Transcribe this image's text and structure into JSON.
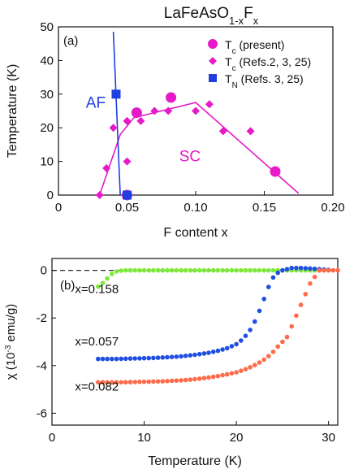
{
  "figure_title": {
    "base": "LaFeAsO",
    "sub": "1-x",
    "mid": "F",
    "sub2": "x"
  },
  "chart_data": [
    {
      "type": "scatter",
      "panel_label": "(a)",
      "xlabel": "F content x",
      "ylabel": "Temperature (K)",
      "xlim": [
        0,
        0.2
      ],
      "ylim": [
        0,
        50
      ],
      "xticks": [
        0,
        0.05,
        0.1,
        0.15,
        0.2
      ],
      "xtick_labels": [
        "0",
        "0.05",
        "0.10",
        "0.15",
        "0.20"
      ],
      "yticks": [
        0,
        10,
        20,
        30,
        40,
        50
      ],
      "ytick_labels": [
        "0",
        "10",
        "20",
        "30",
        "40",
        "50"
      ],
      "legend_position": "top-right",
      "annotations": [
        {
          "text": "AF",
          "x": 0.02,
          "y": 26,
          "color": "#1f3fe0"
        },
        {
          "text": "SC",
          "x": 0.088,
          "y": 10,
          "color": "#e61ac8"
        }
      ],
      "series": [
        {
          "legend": {
            "base": "T",
            "sub": "c",
            "rest": " (present)"
          },
          "marker": "circle",
          "color": "#e61ac8",
          "points": [
            [
              0.05,
              0
            ],
            [
              0.057,
              24.5
            ],
            [
              0.082,
              29
            ],
            [
              0.158,
              7
            ]
          ]
        },
        {
          "legend": {
            "base": "T",
            "sub": "c",
            "rest": " (Refs.2, 3, 25)"
          },
          "marker": "diamond",
          "color": "#e61ac8",
          "points": [
            [
              0.03,
              0
            ],
            [
              0.035,
              8
            ],
            [
              0.04,
              20
            ],
            [
              0.05,
              10
            ],
            [
              0.05,
              22
            ],
            [
              0.06,
              22
            ],
            [
              0.07,
              25
            ],
            [
              0.08,
              25
            ],
            [
              0.1,
              25
            ],
            [
              0.11,
              27
            ],
            [
              0.12,
              19
            ],
            [
              0.14,
              19
            ]
          ]
        },
        {
          "legend": {
            "base": "T",
            "sub": "N",
            "rest": " (Refs. 3, 25)"
          },
          "marker": "square",
          "color": "#1f3fe0",
          "points": [
            [
              0.042,
              30
            ],
            [
              0.05,
              0
            ]
          ]
        }
      ],
      "lines": [
        {
          "name": "SC boundary",
          "color": "#e61ac8",
          "points": [
            [
              0.03,
              0
            ],
            [
              0.045,
              18
            ],
            [
              0.055,
              23
            ],
            [
              0.1,
              27.5
            ],
            [
              0.175,
              0.5
            ]
          ]
        },
        {
          "name": "AF boundary",
          "color": "#1f3fe0",
          "points": [
            [
              0.04,
              48.5
            ],
            [
              0.045,
              0
            ]
          ]
        }
      ]
    },
    {
      "type": "scatter",
      "panel_label": "(b)",
      "xlabel": "Temperature (K)",
      "ylabel_parts": {
        "pre": "χ (10",
        "sup": "-3",
        "post": " emu/g)"
      },
      "xlim": [
        0,
        31
      ],
      "ylim": [
        -6.5,
        0.5
      ],
      "xticks": [
        0,
        10,
        20,
        30
      ],
      "xtick_labels": [
        "0",
        "10",
        "20",
        "30"
      ],
      "yticks": [
        0,
        -2,
        -4,
        -6
      ],
      "ytick_labels": [
        "0",
        "-2",
        "-4",
        "-6"
      ],
      "zero_line": "dashed",
      "series": [
        {
          "name": "x=0.158",
          "color": "#7ee83a",
          "label_pos": [
            2.5,
            -0.95
          ],
          "curve": {
            "T": [
              5,
              5.3,
              5.6,
              5.9,
              6.2,
              6.5,
              6.8,
              7.2,
              8,
              9,
              10,
              11,
              12,
              13,
              14,
              15,
              16,
              17,
              18,
              19,
              20,
              21,
              22,
              23,
              24,
              25,
              26,
              27,
              28,
              29,
              30
            ],
            "chi": [
              -0.68,
              -0.6,
              -0.5,
              -0.38,
              -0.26,
              -0.15,
              -0.07,
              -0.02,
              0,
              0,
              0,
              0,
              0,
              0,
              0,
              0,
              0,
              0,
              0,
              0,
              0,
              0,
              0,
              0,
              0,
              0,
              0,
              0,
              0,
              0,
              0
            ]
          }
        },
        {
          "name": "x=0.057",
          "color": "#1f4fe0",
          "label_pos": [
            2.5,
            -3.15
          ],
          "curve": {
            "T": [
              5,
              6,
              7,
              8,
              9,
              10,
              11,
              12,
              13,
              14,
              15,
              16,
              17,
              18,
              19,
              20,
              20.5,
              21,
              21.5,
              22,
              22.5,
              23,
              23.5,
              24,
              24.5,
              25,
              25.5,
              26,
              27,
              28,
              29,
              30
            ],
            "chi": [
              -3.72,
              -3.72,
              -3.72,
              -3.71,
              -3.7,
              -3.69,
              -3.68,
              -3.66,
              -3.64,
              -3.61,
              -3.57,
              -3.52,
              -3.46,
              -3.38,
              -3.27,
              -3.1,
              -2.95,
              -2.75,
              -2.5,
              -2.15,
              -1.7,
              -1.2,
              -0.7,
              -0.3,
              -0.1,
              0,
              0.05,
              0.1,
              0.1,
              0.08,
              0.05,
              0.02
            ]
          }
        },
        {
          "name": "x=0.082",
          "color": "#ff6b4a",
          "label_pos": [
            2.5,
            -5.05
          ],
          "curve": {
            "T": [
              5,
              6,
              7,
              8,
              9,
              10,
              11,
              12,
              13,
              14,
              15,
              16,
              17,
              18,
              19,
              20,
              20.5,
              21,
              21.5,
              22,
              22.5,
              23,
              23.5,
              24,
              24.5,
              25.5,
              28,
              29,
              30,
              31
            ],
            "chi": [
              -4.7,
              -4.7,
              -4.7,
              -4.7,
              -4.69,
              -4.68,
              -4.67,
              -4.66,
              -4.64,
              -4.62,
              -4.59,
              -4.55,
              -4.5,
              -4.44,
              -4.37,
              -4.28,
              -4.22,
              -4.15,
              -4.07,
              -3.98,
              -3.87,
              -3.75,
              -3.6,
              -3.42,
              -3.2,
              -2.8,
              -0.55,
              0,
              0,
              0
            ]
          }
        }
      ]
    }
  ]
}
